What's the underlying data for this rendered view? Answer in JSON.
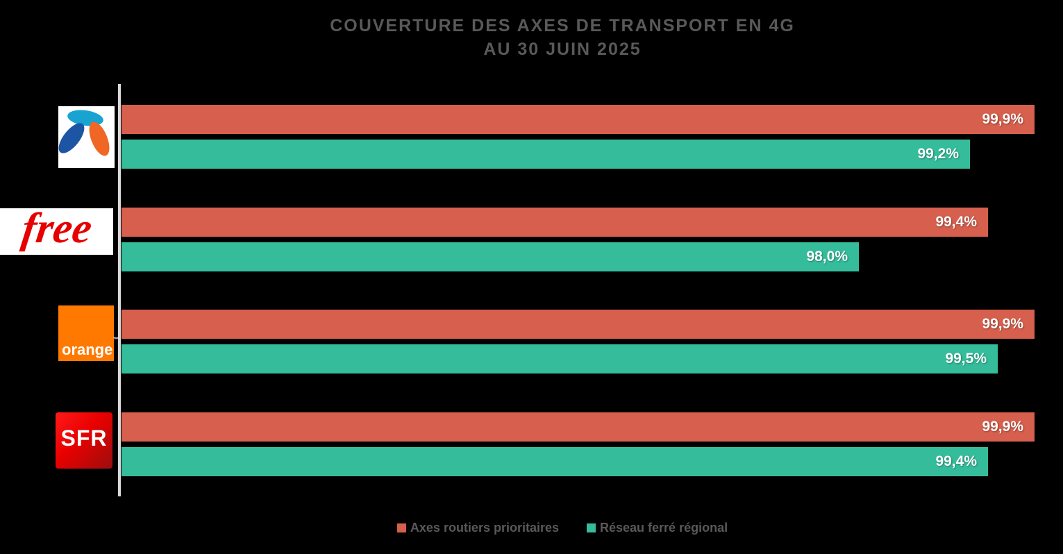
{
  "title": {
    "line1": "COUVERTURE DES AXES DE TRANSPORT EN 4G",
    "line2": "AU 30 JUIN 2025"
  },
  "chart_data": {
    "type": "bar",
    "orientation": "horizontal",
    "title": "Couverture des axes de transport en 4G au 30 juin 2025",
    "categories": [
      "Bouygues Telecom",
      "Free",
      "Orange",
      "SFR"
    ],
    "series": [
      {
        "name": "Axes routiers prioritaires",
        "color": "#d6604d",
        "values": [
          99.9,
          99.4,
          99.9,
          99.9
        ],
        "display_labels": [
          "99,9%",
          "99,4%",
          "99,9%",
          "99,9%"
        ]
      },
      {
        "name": "Réseau ferré régional",
        "color": "#35bd9b",
        "values": [
          99.2,
          98.0,
          99.5,
          99.4
        ],
        "display_labels": [
          "99,2%",
          "98,0%",
          "99,5%",
          "99,4%"
        ]
      }
    ],
    "xlim": [
      90,
      100
    ],
    "unit": "%",
    "grid": false,
    "legend_position": "bottom"
  },
  "legend": {
    "items": [
      {
        "label": "Axes routiers prioritaires",
        "color": "#d6604d"
      },
      {
        "label": "Réseau ferré régional",
        "color": "#35bd9b"
      }
    ]
  },
  "logos": {
    "free": {
      "text": "free"
    },
    "orange": {
      "text": "orange",
      "trademark": "™"
    },
    "sfr": {
      "text": "SFR"
    }
  },
  "colors": {
    "background": "#000000",
    "title_text": "#595959",
    "axis_line": "#d9d9d9",
    "value_label_text": "#ffffff"
  }
}
